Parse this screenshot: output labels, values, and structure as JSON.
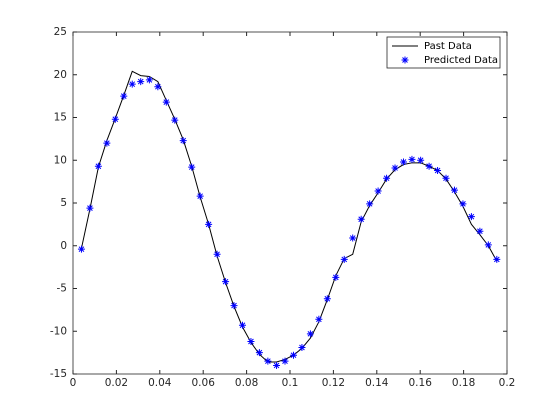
{
  "chart_data": {
    "type": "line",
    "x": [
      0.0039,
      0.0078,
      0.0117,
      0.0156,
      0.0195,
      0.0234,
      0.0273,
      0.0312,
      0.0352,
      0.0391,
      0.043,
      0.0469,
      0.0508,
      0.0547,
      0.0586,
      0.0625,
      0.0664,
      0.0703,
      0.0742,
      0.0781,
      0.082,
      0.0859,
      0.0898,
      0.0938,
      0.0977,
      0.1016,
      0.1055,
      0.1094,
      0.1133,
      0.1172,
      0.1211,
      0.125,
      0.1289,
      0.1328,
      0.1367,
      0.1406,
      0.1445,
      0.1484,
      0.1523,
      0.1562,
      0.1602,
      0.1641,
      0.168,
      0.1719,
      0.1758,
      0.1797,
      0.1836,
      0.1875,
      0.1914,
      0.1953
    ],
    "series": [
      {
        "name": "Past Data",
        "color": "#000000",
        "marker": "none",
        "values": [
          -0.3,
          4.3,
          9.2,
          12.3,
          14.9,
          17.6,
          20.4,
          19.9,
          19.8,
          19.2,
          17.0,
          14.8,
          12.4,
          9.3,
          5.7,
          2.5,
          -1.2,
          -4.3,
          -7.1,
          -9.5,
          -11.3,
          -12.7,
          -13.6,
          -13.6,
          -13.3,
          -12.8,
          -12.0,
          -10.8,
          -8.9,
          -6.3,
          -3.5,
          -1.5,
          -1.0,
          2.8,
          4.7,
          6.2,
          7.8,
          8.9,
          9.5,
          9.7,
          9.7,
          9.3,
          8.8,
          7.8,
          6.3,
          4.6,
          2.5,
          1.3,
          0.0,
          -1.8
        ]
      },
      {
        "name": "Predicted Data",
        "color": "#0000ff",
        "marker": "asterisk",
        "values": [
          -0.4,
          4.4,
          9.3,
          12.0,
          14.8,
          17.5,
          18.9,
          19.2,
          19.4,
          18.6,
          16.8,
          14.7,
          12.3,
          9.2,
          5.8,
          2.5,
          -1.0,
          -4.2,
          -7.0,
          -9.3,
          -11.2,
          -12.5,
          -13.5,
          -14.0,
          -13.5,
          -12.8,
          -11.9,
          -10.3,
          -8.6,
          -6.2,
          -3.7,
          -1.6,
          0.9,
          3.1,
          4.9,
          6.4,
          7.9,
          9.1,
          9.8,
          10.1,
          10.0,
          9.3,
          8.8,
          7.9,
          6.5,
          4.9,
          3.4,
          1.7,
          0.1,
          -1.6
        ]
      }
    ],
    "xlim": [
      0,
      0.2
    ],
    "xticks": [
      0,
      0.02,
      0.04,
      0.06,
      0.08,
      0.1,
      0.12,
      0.14,
      0.16,
      0.18,
      0.2
    ],
    "ylim": [
      -15,
      25
    ],
    "yticks": [
      -15,
      -10,
      -5,
      0,
      5,
      10,
      15,
      20,
      25
    ],
    "grid": false,
    "legend": "upper right"
  }
}
